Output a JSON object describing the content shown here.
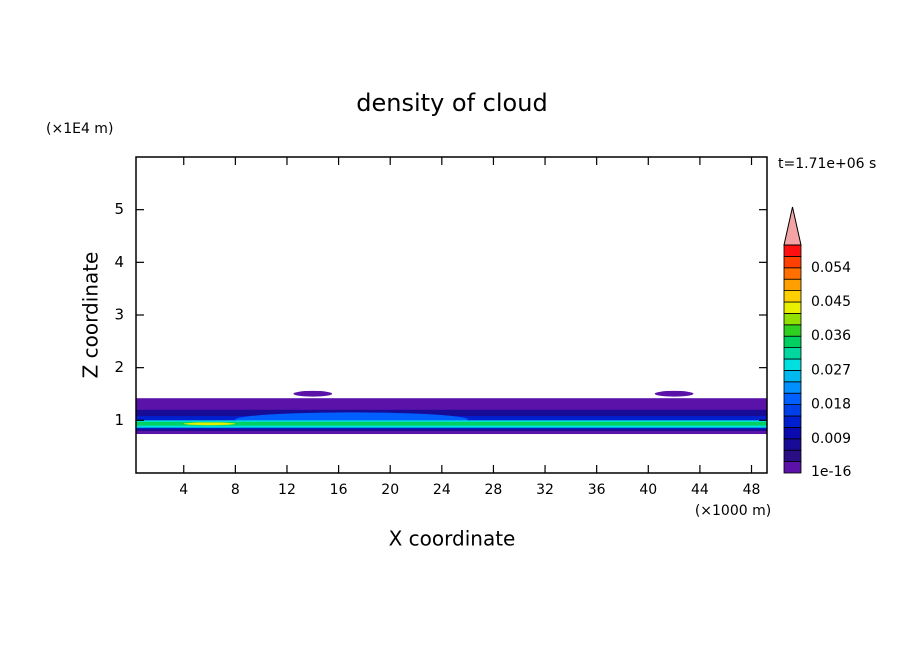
{
  "chart_data": {
    "type": "contour",
    "title": "density of cloud",
    "time_label": "t=1.71e+06 s",
    "xlabel": "X coordinate",
    "ylabel": "Z coordinate",
    "x_unit": "(×1000 m)",
    "y_unit": "(×1E4 m)",
    "xlim": [
      0.3,
      49.2
    ],
    "ylim": [
      0,
      6
    ],
    "xticks": [
      4,
      8,
      12,
      16,
      20,
      24,
      28,
      32,
      36,
      40,
      44,
      48
    ],
    "yticks": [
      1,
      2,
      3,
      4,
      5
    ],
    "colorbar": {
      "levels": [
        0,
        0.003,
        0.006,
        0.009,
        0.012,
        0.015,
        0.018,
        0.021,
        0.024,
        0.027,
        0.03,
        0.033,
        0.036,
        0.039,
        0.042,
        0.045,
        0.048,
        0.051,
        0.054,
        0.057,
        0.06
      ],
      "colors": [
        "#5a12a8",
        "#2a0e86",
        "#180c96",
        "#0a0ab0",
        "#0020d0",
        "#0040e8",
        "#0060ff",
        "#0090ff",
        "#00b8f0",
        "#00e0e0",
        "#00d8a0",
        "#00d060",
        "#30d020",
        "#90e000",
        "#e8f000",
        "#ffd000",
        "#ffa000",
        "#ff7000",
        "#ff4000",
        "#ff1010"
      ],
      "extend_color": "#f4a4a4",
      "ticks": [
        {
          "value": 0,
          "label": "1e-16"
        },
        0.009,
        0.018,
        0.027,
        0.036,
        0.045,
        0.054
      ]
    },
    "bands": [
      {
        "level": 0.0,
        "x": [
          0.3,
          49.2
        ],
        "z": [
          0.74,
          1.42
        ]
      },
      {
        "level": 0.0,
        "x": [
          12.5,
          15.5
        ],
        "z": [
          1.45,
          1.56
        ]
      },
      {
        "level": 0.0,
        "x": [
          40.5,
          43.5
        ],
        "z": [
          1.45,
          1.56
        ]
      },
      {
        "level": 0.006,
        "x": [
          0.3,
          49.2
        ],
        "z": [
          0.8,
          1.2
        ]
      },
      {
        "level": 0.012,
        "x": [
          0.3,
          49.2
        ],
        "z": [
          0.84,
          1.08
        ]
      },
      {
        "level": 0.018,
        "x": [
          8.0,
          26.0
        ],
        "z": [
          0.88,
          1.15
        ]
      },
      {
        "level": 0.027,
        "x": [
          0.3,
          49.2
        ],
        "z": [
          0.86,
          1.0
        ]
      },
      {
        "level": 0.033,
        "x": [
          0.3,
          49.2
        ],
        "z": [
          0.9,
          0.97
        ]
      },
      {
        "level": 0.042,
        "x": [
          4.0,
          8.0
        ],
        "z": [
          0.91,
          0.96
        ]
      }
    ]
  }
}
